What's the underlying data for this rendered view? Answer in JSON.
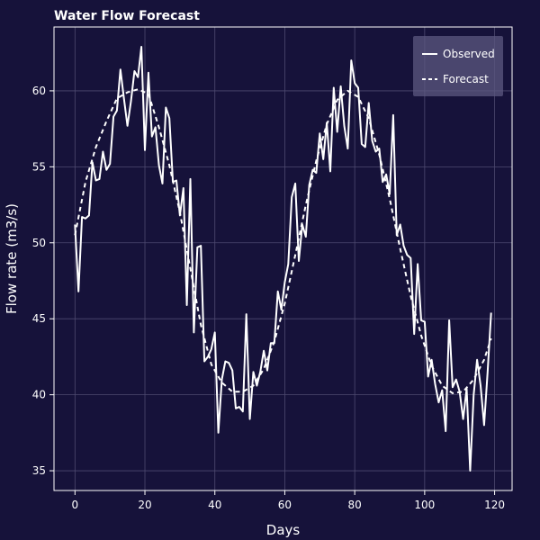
{
  "chart_data": {
    "type": "line",
    "title": "Water Flow Forecast",
    "xlabel": "Days",
    "ylabel": "Flow rate (m3/s)",
    "xlim": [
      -6,
      125
    ],
    "ylim": [
      33.7,
      64.2
    ],
    "xticks": [
      0,
      20,
      40,
      60,
      80,
      100,
      120
    ],
    "yticks": [
      35,
      40,
      45,
      50,
      55,
      60
    ],
    "grid": true,
    "legend_position": "top-right",
    "colors": {
      "background": "#16123a",
      "axes_edge": "#ffffff",
      "grid": "#4e4a70",
      "line": "#ffffff",
      "legend_bg": "#5c5880"
    },
    "series": [
      {
        "name": "Observed",
        "style": "solid",
        "x": [
          0,
          1,
          2,
          3,
          4,
          5,
          6,
          7,
          8,
          9,
          10,
          11,
          12,
          13,
          14,
          15,
          16,
          17,
          18,
          19,
          20,
          21,
          22,
          23,
          24,
          25,
          26,
          27,
          28,
          29,
          30,
          31,
          32,
          33,
          34,
          35,
          36,
          37,
          38,
          39,
          40,
          41,
          42,
          43,
          44,
          45,
          46,
          47,
          48,
          49,
          50,
          51,
          52,
          53,
          54,
          55,
          56,
          57,
          58,
          59,
          60,
          61,
          62,
          63,
          64,
          65,
          66,
          67,
          68,
          69,
          70,
          71,
          72,
          73,
          74,
          75,
          76,
          77,
          78,
          79,
          80,
          81,
          82,
          83,
          84,
          85,
          86,
          87,
          88,
          89,
          90,
          91,
          92,
          93,
          94,
          95,
          96,
          97,
          98,
          99,
          100,
          101,
          102,
          103,
          104,
          105,
          106,
          107,
          108,
          109,
          110,
          111,
          112,
          113,
          114,
          115,
          116,
          117,
          118,
          119
        ],
        "y": [
          51.2,
          46.8,
          51.7,
          51.6,
          51.8,
          55.3,
          54.1,
          54.2,
          56.0,
          54.8,
          55.2,
          58.3,
          58.7,
          61.4,
          59.5,
          57.7,
          59.3,
          61.3,
          60.9,
          62.9,
          56.1,
          61.2,
          57.0,
          57.6,
          55.1,
          53.9,
          58.9,
          58.2,
          54.0,
          54.1,
          51.8,
          53.6,
          45.9,
          54.2,
          44.1,
          49.7,
          49.8,
          42.2,
          42.5,
          43.0,
          44.1,
          37.5,
          41.0,
          42.2,
          42.1,
          41.6,
          39.1,
          39.2,
          38.9,
          45.3,
          38.4,
          41.5,
          40.6,
          41.5,
          42.9,
          41.6,
          43.4,
          43.4,
          46.8,
          45.6,
          47.4,
          48.6,
          53.0,
          53.9,
          48.8,
          51.2,
          50.4,
          53.8,
          54.8,
          54.6,
          57.2,
          55.5,
          57.9,
          54.7,
          60.2,
          57.3,
          60.3,
          57.7,
          56.2,
          62.0,
          60.5,
          60.2,
          56.5,
          56.3,
          59.2,
          56.7,
          56.0,
          56.2,
          54.0,
          54.5,
          53.2,
          58.4,
          50.5,
          51.2,
          49.8,
          49.2,
          49.0,
          44.0,
          48.6,
          44.9,
          44.8,
          41.2,
          42.3,
          40.7,
          39.5,
          40.3,
          37.6,
          44.9,
          40.5,
          41.0,
          40.2,
          38.4,
          40.4,
          35.0,
          40.0,
          42.3,
          40.6,
          38.0,
          41.5,
          45.4
        ]
      },
      {
        "name": "Forecast",
        "style": "dashed",
        "x": [
          0,
          3,
          6,
          9,
          12,
          15,
          18,
          21,
          24,
          27,
          30,
          33,
          36,
          39,
          42,
          45,
          48,
          51,
          54,
          57,
          60,
          63,
          66,
          69,
          72,
          75,
          78,
          81,
          84,
          87,
          90,
          93,
          96,
          99,
          102,
          105,
          108,
          111,
          114,
          117,
          119
        ],
        "y": [
          50.5,
          54.0,
          56.3,
          58.0,
          59.5,
          59.9,
          60.1,
          59.8,
          57.6,
          55.1,
          52.0,
          48.3,
          44.6,
          42.0,
          40.8,
          40.2,
          40.2,
          40.6,
          41.7,
          43.5,
          46.0,
          49.2,
          52.5,
          55.4,
          57.8,
          59.4,
          60.0,
          59.6,
          58.2,
          55.8,
          52.9,
          49.6,
          46.5,
          43.9,
          41.9,
          40.6,
          40.1,
          40.2,
          41.0,
          42.3,
          43.7
        ]
      }
    ]
  }
}
